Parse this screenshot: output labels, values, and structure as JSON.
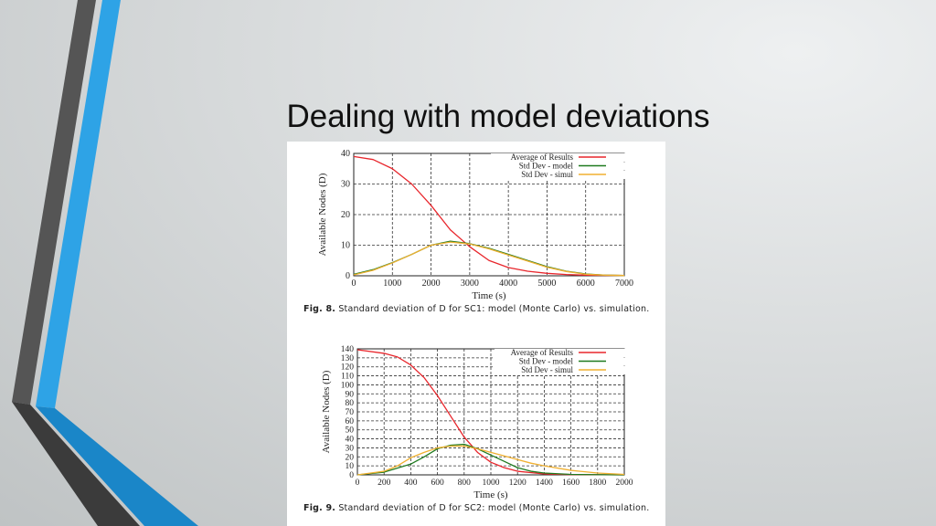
{
  "slide": {
    "title": "Dealing with model deviations"
  },
  "colors": {
    "dark_stripe": "#4a4a4a",
    "blue_stripe": "#2ea3e6",
    "avg": "#e8262c",
    "model": "#1f7a1f",
    "simul": "#f0b030"
  },
  "captions": [
    {
      "label": "Fig. 8.",
      "text": "Standard deviation of D for SC1: model (Monte Carlo) vs. simulation."
    },
    {
      "label": "Fig. 9.",
      "text": "Standard deviation of D for SC2: model (Monte Carlo) vs. simulation."
    }
  ],
  "chart_data": [
    {
      "type": "line",
      "title": "",
      "xlabel": "Time (s)",
      "ylabel": "Available Nodes (D)",
      "xlim": [
        0,
        7000
      ],
      "ylim": [
        0,
        40
      ],
      "xticks": [
        0,
        1000,
        2000,
        3000,
        4000,
        5000,
        6000,
        7000
      ],
      "yticks": [
        0,
        10,
        20,
        30,
        40
      ],
      "grid": true,
      "legend": "top-right",
      "series": [
        {
          "name": "Average of Results",
          "color": "#e8262c",
          "x": [
            0,
            500,
            1000,
            1500,
            2000,
            2500,
            3000,
            3500,
            4000,
            4500,
            5000,
            5500,
            6000,
            7000
          ],
          "y": [
            39,
            38,
            35,
            30,
            23,
            15,
            9.5,
            5,
            2.7,
            1.5,
            0.8,
            0.4,
            0.2,
            0.1
          ]
        },
        {
          "name": "Std Dev - model",
          "color": "#1f7a1f",
          "x": [
            0,
            500,
            1000,
            1500,
            2000,
            2500,
            3000,
            3500,
            4000,
            4500,
            5000,
            5500,
            6000,
            6500,
            7000
          ],
          "y": [
            0.5,
            2,
            4.3,
            7,
            10,
            11.3,
            10.5,
            9,
            7,
            5,
            3,
            1.5,
            0.6,
            0.2,
            0.1
          ]
        },
        {
          "name": "Std Dev - simul",
          "color": "#f0b030",
          "x": [
            0,
            500,
            1000,
            1500,
            2000,
            2500,
            3000,
            3500,
            4000,
            4500,
            5000,
            5500,
            6000,
            6500,
            7000
          ],
          "y": [
            0.3,
            1.8,
            4.2,
            7,
            10,
            11,
            10.4,
            8.8,
            6.8,
            4.8,
            2.8,
            1.4,
            0.5,
            0.2,
            0.1
          ]
        }
      ]
    },
    {
      "type": "line",
      "title": "",
      "xlabel": "Time (s)",
      "ylabel": "Available Nodes (D)",
      "xlim": [
        0,
        2000
      ],
      "ylim": [
        0,
        140
      ],
      "xticks": [
        0,
        200,
        400,
        600,
        800,
        1000,
        1200,
        1400,
        1600,
        1800,
        2000
      ],
      "yticks": [
        0,
        10,
        20,
        30,
        40,
        50,
        60,
        70,
        80,
        90,
        100,
        110,
        120,
        130,
        140
      ],
      "grid": true,
      "legend": "top-right",
      "series": [
        {
          "name": "Average of Results",
          "color": "#e8262c",
          "x": [
            0,
            200,
            300,
            400,
            500,
            600,
            700,
            800,
            900,
            1000,
            1100,
            1200,
            1400,
            1600,
            2000
          ],
          "y": [
            139,
            135,
            131,
            122,
            108,
            88,
            65,
            42,
            25,
            14,
            8,
            4,
            1,
            0.3,
            0
          ]
        },
        {
          "name": "Std Dev - model",
          "color": "#1f7a1f",
          "x": [
            0,
            200,
            400,
            500,
            600,
            700,
            800,
            900,
            1000,
            1100,
            1200,
            1300,
            1400,
            1600,
            2000
          ],
          "y": [
            0,
            3,
            12,
            20,
            29,
            33,
            34,
            29,
            22,
            15,
            8,
            4,
            2,
            0.5,
            0
          ]
        },
        {
          "name": "Std Dev - simul",
          "color": "#f0b030",
          "x": [
            0,
            200,
            300,
            400,
            500,
            600,
            700,
            800,
            900,
            1000,
            1100,
            1200,
            1300,
            1400,
            1600,
            1800,
            2000
          ],
          "y": [
            0,
            4,
            10,
            19,
            25,
            30,
            32,
            32,
            29,
            25,
            21,
            17,
            13,
            10,
            5,
            2,
            0.5
          ]
        }
      ]
    }
  ]
}
